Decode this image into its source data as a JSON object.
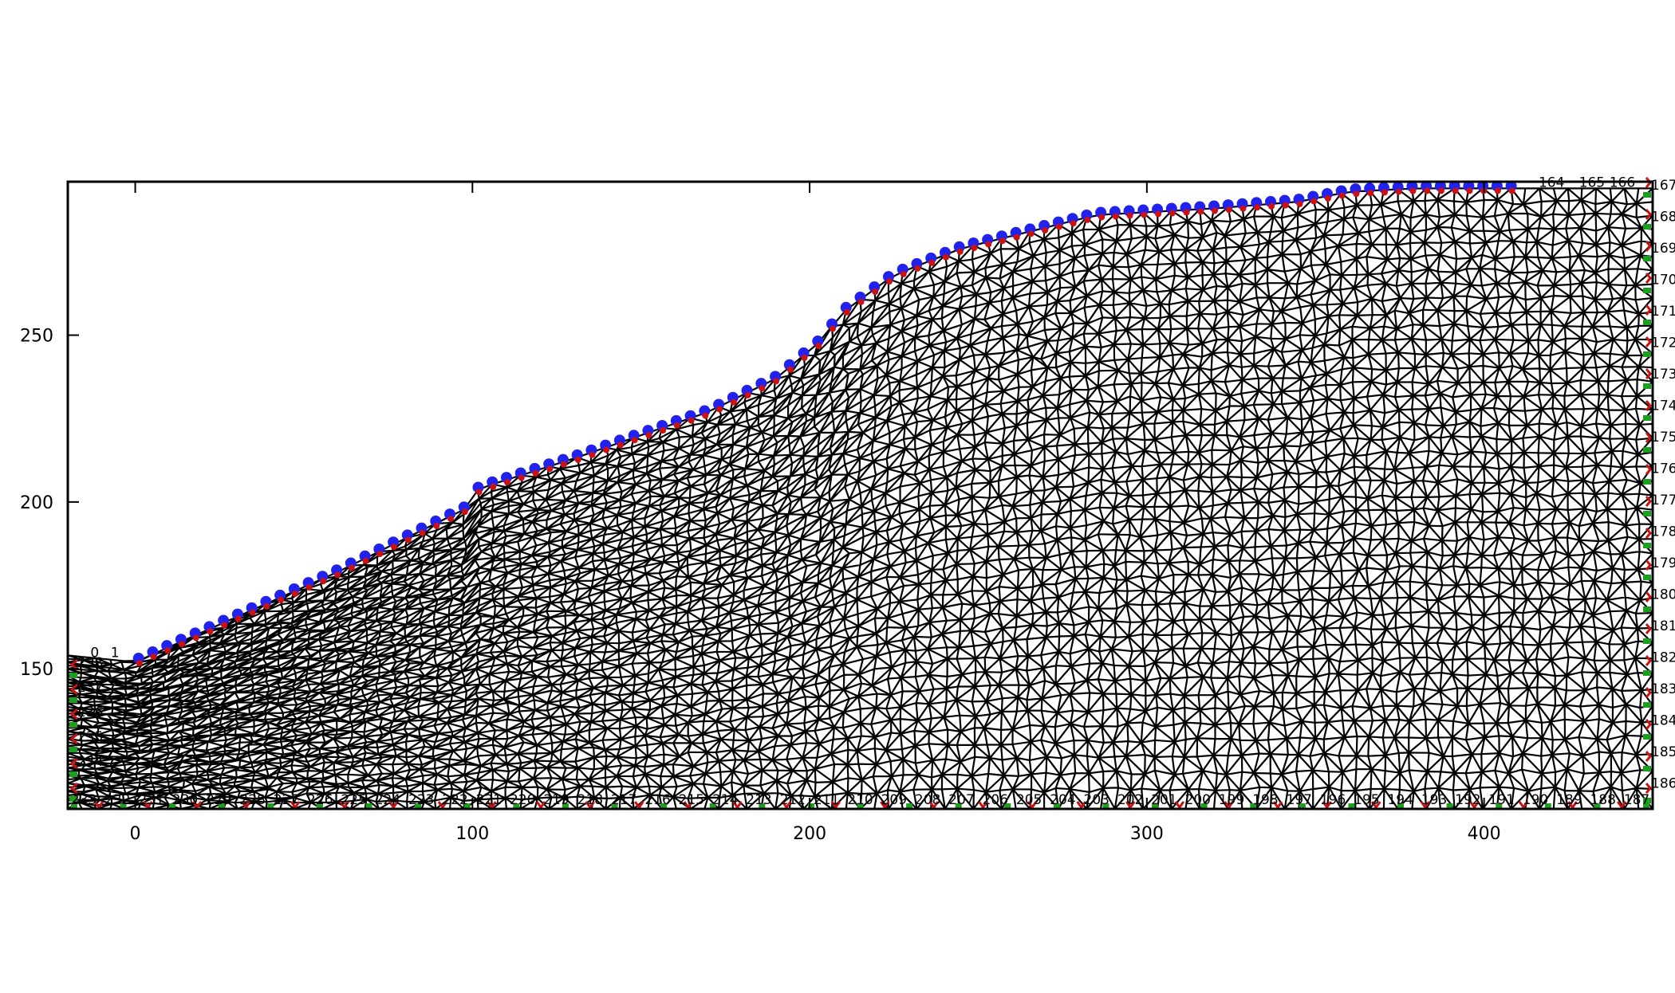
{
  "chart_data": {
    "type": "mesh",
    "xlim": [
      -20,
      450
    ],
    "ylim": [
      108,
      296
    ],
    "x_ticks": [
      0,
      100,
      200,
      300,
      400
    ],
    "y_ticks": [
      150,
      200,
      250
    ],
    "x_tick_labels": [
      "0",
      "100",
      "200",
      "300",
      "400"
    ],
    "y_tick_labels": [
      "150",
      "200",
      "250"
    ],
    "grid": false,
    "legend": "none",
    "surface_profile": [
      [
        -20,
        154
      ],
      [
        0,
        152
      ],
      [
        20,
        161
      ],
      [
        40,
        170
      ],
      [
        60,
        179
      ],
      [
        80,
        189
      ],
      [
        98,
        198
      ],
      [
        100,
        203
      ],
      [
        105,
        205
      ],
      [
        130,
        213
      ],
      [
        150,
        220
      ],
      [
        170,
        227
      ],
      [
        190,
        237
      ],
      [
        203,
        248
      ],
      [
        210,
        257
      ],
      [
        225,
        268
      ],
      [
        245,
        276
      ],
      [
        265,
        281
      ],
      [
        285,
        286
      ],
      [
        320,
        288
      ],
      [
        345,
        290
      ],
      [
        360,
        293
      ],
      [
        380,
        294
      ],
      [
        450,
        294
      ]
    ],
    "base_y": 108,
    "node_labels": {
      "bottom": [
        "233",
        "232",
        "231",
        "230",
        "229",
        "228",
        "227",
        "226",
        "225",
        "224",
        "223",
        "222",
        "221",
        "220",
        "219",
        "218",
        "217",
        "216",
        "215",
        "214",
        "213",
        "212",
        "211",
        "210",
        "209",
        "208",
        "207",
        "206",
        "205",
        "204",
        "203",
        "202",
        "201",
        "200",
        "199",
        "198",
        "197",
        "196",
        "195",
        "194",
        "193",
        "192",
        "191",
        "190",
        "189",
        "188",
        "187"
      ],
      "right": [
        "167",
        "168",
        "169",
        "170",
        "171",
        "172",
        "173",
        "174",
        "175",
        "176",
        "177",
        "178",
        "179",
        "180",
        "181",
        "182",
        "183",
        "184",
        "185",
        "186"
      ],
      "left": [
        "238",
        "237",
        "236",
        "235",
        "234"
      ],
      "top_sample": [
        "0",
        "1",
        "164",
        "165",
        "166"
      ]
    },
    "colors": {
      "mesh": "#000000",
      "surface_nodes": "#2222ee",
      "fixed_nodes_red": "#cc1111",
      "fixed_nodes_green": "#1e9e1e",
      "frame": "#000000"
    }
  }
}
